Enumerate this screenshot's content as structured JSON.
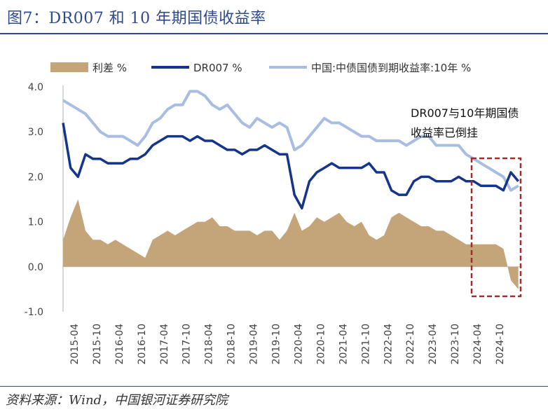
{
  "figure": {
    "title": "图7：DR007 和 10 年期国债收益率",
    "source": "资料来源：Wind，中国银河证券研究院",
    "annotation": "DR007与10年期国债收益率已倒挂"
  },
  "colors": {
    "spread": "#c4a57a",
    "dr007": "#15348c",
    "cgb10y": "#a9bde3",
    "box": "#a52a2a",
    "accent": "#2f4a8a"
  },
  "chart_data": {
    "type": "line",
    "ylim": [
      -1.0,
      4.0
    ],
    "yticks": [
      "4.0",
      "3.0",
      "2.0",
      "1.0",
      "0.0",
      "-1.0"
    ],
    "ytick_values": [
      4.0,
      3.0,
      2.0,
      1.0,
      0.0,
      -1.0
    ],
    "xticks": [
      "2015-04",
      "2015-10",
      "2016-04",
      "2016-10",
      "2017-04",
      "2017-10",
      "2018-04",
      "2018-10",
      "2019-04",
      "2019-10",
      "2020-04",
      "2020-10",
      "2021-04",
      "2021-10",
      "2022-04",
      "2022-10",
      "2023-04",
      "2023-10",
      "2024-04",
      "2024-10"
    ],
    "series": [
      {
        "name": "利差 %",
        "type": "area",
        "x": [
          "2015-01",
          "2015-03",
          "2015-05",
          "2015-07",
          "2015-09",
          "2015-11",
          "2016-01",
          "2016-03",
          "2016-05",
          "2016-07",
          "2016-09",
          "2016-11",
          "2017-01",
          "2017-03",
          "2017-05",
          "2017-07",
          "2017-09",
          "2017-11",
          "2018-01",
          "2018-03",
          "2018-05",
          "2018-07",
          "2018-09",
          "2018-11",
          "2019-01",
          "2019-03",
          "2019-05",
          "2019-07",
          "2019-09",
          "2019-11",
          "2020-01",
          "2020-03",
          "2020-05",
          "2020-07",
          "2020-09",
          "2020-11",
          "2021-01",
          "2021-03",
          "2021-05",
          "2021-07",
          "2021-09",
          "2021-11",
          "2022-01",
          "2022-03",
          "2022-05",
          "2022-07",
          "2022-09",
          "2022-11",
          "2023-01",
          "2023-03",
          "2023-05",
          "2023-07",
          "2023-09",
          "2023-11",
          "2024-01",
          "2024-03",
          "2024-05",
          "2024-07",
          "2024-09",
          "2024-11",
          "2025-01",
          "2025-03"
        ],
        "values": [
          0.6,
          1.1,
          1.5,
          0.8,
          0.6,
          0.6,
          0.5,
          0.6,
          0.5,
          0.4,
          0.3,
          0.2,
          0.6,
          0.7,
          0.8,
          0.7,
          0.8,
          0.9,
          1.0,
          1.0,
          1.1,
          0.9,
          0.9,
          0.8,
          0.8,
          0.8,
          0.7,
          0.8,
          0.8,
          0.6,
          0.8,
          1.2,
          0.8,
          0.9,
          1.1,
          1.0,
          1.1,
          1.2,
          1.0,
          0.9,
          1.0,
          0.7,
          0.6,
          0.7,
          1.1,
          1.2,
          1.1,
          1.0,
          0.9,
          0.9,
          0.8,
          0.8,
          0.7,
          0.6,
          0.5,
          0.5,
          0.5,
          0.5,
          0.5,
          0.4,
          -0.3,
          -0.5
        ]
      },
      {
        "name": "DR007 %",
        "type": "line",
        "x": [
          "2015-01",
          "2015-03",
          "2015-05",
          "2015-07",
          "2015-09",
          "2015-11",
          "2016-01",
          "2016-03",
          "2016-05",
          "2016-07",
          "2016-09",
          "2016-11",
          "2017-01",
          "2017-03",
          "2017-05",
          "2017-07",
          "2017-09",
          "2017-11",
          "2018-01",
          "2018-03",
          "2018-05",
          "2018-07",
          "2018-09",
          "2018-11",
          "2019-01",
          "2019-03",
          "2019-05",
          "2019-07",
          "2019-09",
          "2019-11",
          "2020-01",
          "2020-03",
          "2020-05",
          "2020-07",
          "2020-09",
          "2020-11",
          "2021-01",
          "2021-03",
          "2021-05",
          "2021-07",
          "2021-09",
          "2021-11",
          "2022-01",
          "2022-03",
          "2022-05",
          "2022-07",
          "2022-09",
          "2022-11",
          "2023-01",
          "2023-03",
          "2023-05",
          "2023-07",
          "2023-09",
          "2023-11",
          "2024-01",
          "2024-03",
          "2024-05",
          "2024-07",
          "2024-09",
          "2024-11",
          "2025-01",
          "2025-03"
        ],
        "values": [
          3.2,
          2.2,
          2.0,
          2.5,
          2.4,
          2.4,
          2.3,
          2.3,
          2.3,
          2.4,
          2.4,
          2.5,
          2.7,
          2.8,
          2.9,
          2.9,
          2.9,
          2.8,
          2.9,
          2.8,
          2.8,
          2.7,
          2.6,
          2.6,
          2.5,
          2.6,
          2.6,
          2.7,
          2.6,
          2.5,
          2.5,
          1.6,
          1.3,
          1.9,
          2.1,
          2.2,
          2.3,
          2.2,
          2.2,
          2.2,
          2.2,
          2.3,
          2.1,
          2.1,
          1.7,
          1.6,
          1.6,
          1.9,
          2.0,
          2.0,
          1.9,
          1.9,
          1.9,
          2.0,
          1.9,
          1.9,
          1.8,
          1.8,
          1.8,
          1.7,
          2.1,
          1.9
        ]
      },
      {
        "name": "中国:中债国债到期收益率:10年 %",
        "type": "line",
        "x": [
          "2015-01",
          "2015-03",
          "2015-05",
          "2015-07",
          "2015-09",
          "2015-11",
          "2016-01",
          "2016-03",
          "2016-05",
          "2016-07",
          "2016-09",
          "2016-11",
          "2017-01",
          "2017-03",
          "2017-05",
          "2017-07",
          "2017-09",
          "2017-11",
          "2018-01",
          "2018-03",
          "2018-05",
          "2018-07",
          "2018-09",
          "2018-11",
          "2019-01",
          "2019-03",
          "2019-05",
          "2019-07",
          "2019-09",
          "2019-11",
          "2020-01",
          "2020-03",
          "2020-05",
          "2020-07",
          "2020-09",
          "2020-11",
          "2021-01",
          "2021-03",
          "2021-05",
          "2021-07",
          "2021-09",
          "2021-11",
          "2022-01",
          "2022-03",
          "2022-05",
          "2022-07",
          "2022-09",
          "2022-11",
          "2023-01",
          "2023-03",
          "2023-05",
          "2023-07",
          "2023-09",
          "2023-11",
          "2024-01",
          "2024-03",
          "2024-05",
          "2024-07",
          "2024-09",
          "2024-11",
          "2025-01",
          "2025-03"
        ],
        "values": [
          3.7,
          3.6,
          3.5,
          3.4,
          3.2,
          3.0,
          2.9,
          2.9,
          2.9,
          2.8,
          2.7,
          2.9,
          3.2,
          3.3,
          3.5,
          3.6,
          3.6,
          3.9,
          3.9,
          3.8,
          3.6,
          3.5,
          3.6,
          3.4,
          3.2,
          3.1,
          3.3,
          3.2,
          3.1,
          3.2,
          3.1,
          2.6,
          2.7,
          2.9,
          3.1,
          3.3,
          3.2,
          3.2,
          3.1,
          3.0,
          2.9,
          2.9,
          2.8,
          2.8,
          2.8,
          2.8,
          2.7,
          2.8,
          2.9,
          2.9,
          2.7,
          2.7,
          2.7,
          2.7,
          2.5,
          2.4,
          2.3,
          2.2,
          2.1,
          2.0,
          1.7,
          1.8
        ]
      }
    ],
    "legend_position": "top",
    "grid": false
  }
}
